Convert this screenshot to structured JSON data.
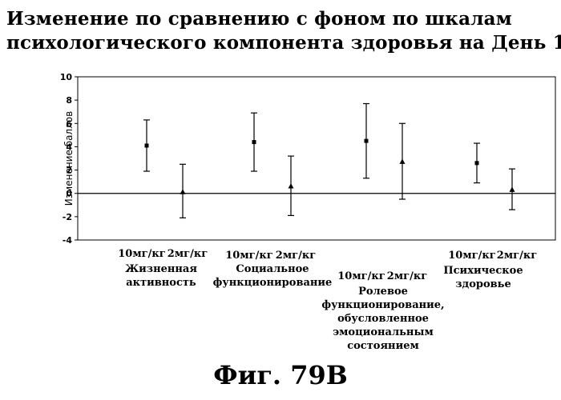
{
  "title_lines": [
    "Изменение по сравнению с фоном  по шкалам",
    "психологического  компонента здоровья на День 180"
  ],
  "figure_caption": "Фиг. 79В",
  "chart_data": {
    "type": "errorbar",
    "ylabel": "Изменение баллов",
    "ylim": [
      -4,
      10
    ],
    "yticks": [
      -4,
      -2,
      0,
      2,
      4,
      6,
      8,
      10
    ],
    "grid": false,
    "zero_line": true,
    "dose_labels": [
      "10мг/кг",
      "2мг/кг"
    ],
    "groups": [
      {
        "label_lines": [
          "Жизненная",
          "активность"
        ],
        "points": [
          {
            "dose": "10мг/кг",
            "mean": 4.1,
            "low": 1.9,
            "high": 6.3,
            "marker": "square"
          },
          {
            "dose": "2мг/кг",
            "mean": 0.1,
            "low": -2.1,
            "high": 2.5,
            "marker": "triangle"
          }
        ]
      },
      {
        "label_lines": [
          "Социальное",
          "функционирование"
        ],
        "points": [
          {
            "dose": "10мг/кг",
            "mean": 4.4,
            "low": 1.9,
            "high": 6.9,
            "marker": "square"
          },
          {
            "dose": "2мг/кг",
            "mean": 0.6,
            "low": -1.9,
            "high": 3.2,
            "marker": "triangle"
          }
        ]
      },
      {
        "label_lines": [
          "Ролевое",
          "функционирование,",
          "обусловленное",
          "эмоциональным",
          "состоянием"
        ],
        "points": [
          {
            "dose": "10мг/кг",
            "mean": 4.5,
            "low": 1.3,
            "high": 7.7,
            "marker": "square"
          },
          {
            "dose": "2мг/кг",
            "mean": 2.7,
            "low": -0.5,
            "high": 6.0,
            "marker": "triangle"
          }
        ]
      },
      {
        "label_lines": [
          "Психическое",
          "здоровье"
        ],
        "points": [
          {
            "dose": "10мг/кг",
            "mean": 2.6,
            "low": 0.9,
            "high": 4.3,
            "marker": "square"
          },
          {
            "dose": "2мг/кг",
            "mean": 0.3,
            "low": -1.4,
            "high": 2.1,
            "marker": "triangle"
          }
        ]
      }
    ]
  }
}
